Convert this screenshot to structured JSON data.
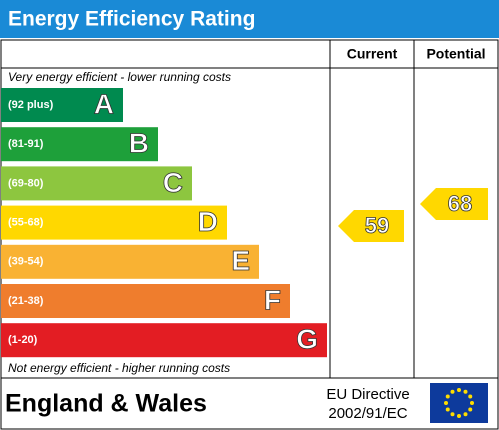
{
  "header": {
    "title": "Energy Efficiency Rating"
  },
  "table": {
    "columns": [
      "Current",
      "Potential"
    ]
  },
  "top_note": "Very energy efficient - lower running costs",
  "bottom_note": "Not energy efficient - higher running costs",
  "bands": [
    {
      "range": "(92 plus)",
      "letter": "A",
      "color": "#008a4f"
    },
    {
      "range": "(81-91)",
      "letter": "B",
      "color": "#1ea03a"
    },
    {
      "range": "(69-80)",
      "letter": "C",
      "color": "#8dc63f"
    },
    {
      "range": "(55-68)",
      "letter": "D",
      "color": "#ffd800"
    },
    {
      "range": "(39-54)",
      "letter": "E",
      "color": "#f9b233"
    },
    {
      "range": "(21-38)",
      "letter": "F",
      "color": "#ef7d2d"
    },
    {
      "range": "(1-20)",
      "letter": "G",
      "color": "#e31d23"
    }
  ],
  "current": {
    "value": 59,
    "color": "#ffd800"
  },
  "potential": {
    "value": 68,
    "color": "#ffd800"
  },
  "footer": {
    "region": "England & Wales",
    "directive_line1": "EU Directive",
    "directive_line2": "2002/91/EC"
  }
}
